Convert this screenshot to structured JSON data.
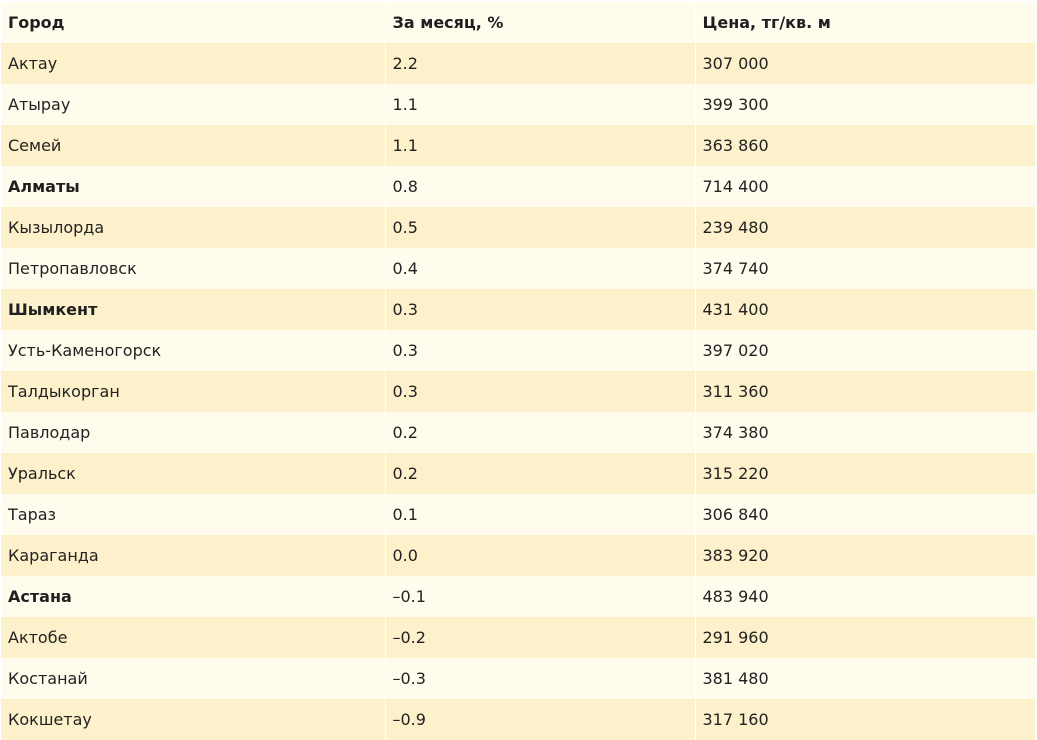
{
  "table": {
    "headers": [
      "Город",
      "За месяц, %",
      "Цена, тг/кв. м"
    ],
    "rows": [
      {
        "city": "Актау",
        "month": "2.2",
        "price": "307 000",
        "bold": false
      },
      {
        "city": "Атырау",
        "month": "1.1",
        "price": "399 300",
        "bold": false
      },
      {
        "city": "Семей",
        "month": "1.1",
        "price": "363 860",
        "bold": false
      },
      {
        "city": "Алматы",
        "month": "0.8",
        "price": "714 400",
        "bold": true
      },
      {
        "city": "Кызылорда",
        "month": "0.5",
        "price": "239 480",
        "bold": false
      },
      {
        "city": "Петропавловск",
        "month": "0.4",
        "price": "374 740",
        "bold": false
      },
      {
        "city": "Шымкент",
        "month": "0.3",
        "price": "431 400",
        "bold": true
      },
      {
        "city": "Усть-Каменогорск",
        "month": "0.3",
        "price": "397 020",
        "bold": false
      },
      {
        "city": "Талдыкорган",
        "month": "0.3",
        "price": "311 360",
        "bold": false
      },
      {
        "city": "Павлодар",
        "month": "0.2",
        "price": "374 380",
        "bold": false
      },
      {
        "city": "Уральск",
        "month": "0.2",
        "price": "315 220",
        "bold": false
      },
      {
        "city": "Тараз",
        "month": "0.1",
        "price": "306 840",
        "bold": false
      },
      {
        "city": "Караганда",
        "month": "0.0",
        "price": "383 920",
        "bold": false
      },
      {
        "city": "Астана",
        "month": "–0.1",
        "price": "483 940",
        "bold": true
      },
      {
        "city": "Актобе",
        "month": "–0.2",
        "price": "291 960",
        "bold": false
      },
      {
        "city": "Костанай",
        "month": "–0.3",
        "price": "381 480",
        "bold": false
      },
      {
        "city": "Кокшетау",
        "month": "–0.9",
        "price": "317 160",
        "bold": false
      }
    ]
  },
  "colors": {
    "row_odd": "#fdf1cc",
    "row_even": "#fffcee"
  }
}
